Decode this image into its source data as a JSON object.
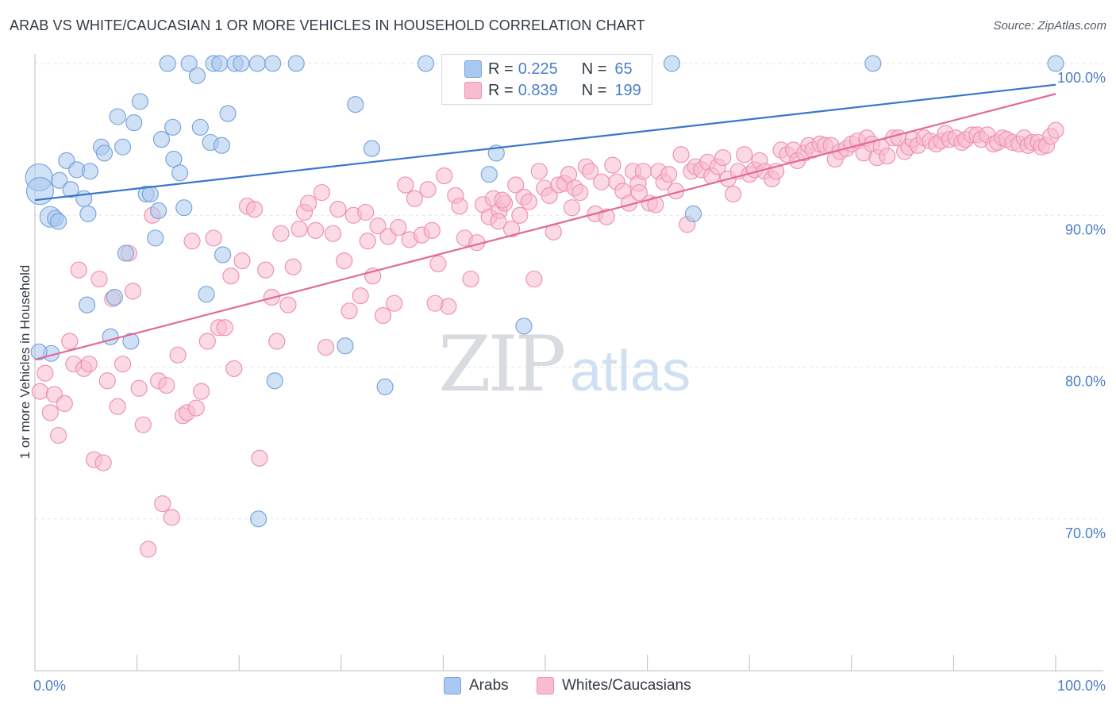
{
  "title": "ARAB VS WHITE/CAUCASIAN 1 OR MORE VEHICLES IN HOUSEHOLD CORRELATION CHART",
  "source": "Source: ZipAtlas.com",
  "watermark": {
    "zip": "ZIP",
    "atlas": "atlas"
  },
  "legend": {
    "rows": [
      {
        "r_label": "R =",
        "r_value": "0.225",
        "n_label": "N =",
        "n_value": "65",
        "color": "#a9c8ef",
        "stroke": "#7aa5dd"
      },
      {
        "r_label": "R =",
        "r_value": "0.839",
        "n_label": "N =",
        "n_value": "199",
        "color": "#f7bcd0",
        "stroke": "#ee93b1"
      }
    ]
  },
  "bottom_legend": {
    "arabs": "Arabs",
    "whites": "Whites/Caucasians"
  },
  "chart_data": {
    "type": "scatter",
    "title": "ARAB VS WHITE/CAUCASIAN 1 OR MORE VEHICLES IN HOUSEHOLD CORRELATION CHART",
    "xlabel": "",
    "ylabel": "1 or more Vehicles in Household",
    "xlim": [
      0,
      100
    ],
    "ylim": [
      60,
      100
    ],
    "x_tick_labels": [
      "0.0%",
      "100.0%"
    ],
    "y_ticks": [
      70,
      80,
      90,
      100
    ],
    "y_tick_labels": [
      "70.0%",
      "80.0%",
      "90.0%",
      "100.0%"
    ],
    "grid": "horizontal dashed",
    "legend_position": "top-center",
    "series": [
      {
        "name": "Arabs",
        "color": "#a9c8ef",
        "stroke": "#7aa5dd",
        "trend": {
          "x": [
            0,
            100
          ],
          "y": [
            91.0,
            98.6
          ],
          "color": "#3a76cc"
        },
        "points": [
          [
            0.4,
            92.5
          ],
          [
            0.5,
            91.6
          ],
          [
            1.5,
            89.9
          ],
          [
            2.0,
            89.8
          ],
          [
            2.3,
            89.6
          ],
          [
            1.6,
            80.9
          ],
          [
            2.4,
            92.3
          ],
          [
            3.1,
            93.6
          ],
          [
            3.5,
            91.7
          ],
          [
            4.1,
            93.0
          ],
          [
            4.8,
            91.1
          ],
          [
            5.4,
            92.9
          ],
          [
            5.2,
            90.1
          ],
          [
            5.1,
            84.1
          ],
          [
            6.5,
            94.5
          ],
          [
            6.8,
            94.1
          ],
          [
            7.4,
            82.0
          ],
          [
            7.8,
            84.6
          ],
          [
            8.1,
            96.5
          ],
          [
            8.6,
            94.5
          ],
          [
            8.9,
            87.5
          ],
          [
            9.4,
            81.7
          ],
          [
            9.7,
            96.1
          ],
          [
            10.3,
            97.5
          ],
          [
            10.9,
            91.4
          ],
          [
            11.3,
            91.4
          ],
          [
            11.8,
            88.5
          ],
          [
            12.4,
            95.0
          ],
          [
            12.1,
            90.3
          ],
          [
            13.0,
            100.0
          ],
          [
            13.5,
            95.8
          ],
          [
            13.6,
            93.7
          ],
          [
            14.2,
            92.8
          ],
          [
            14.6,
            90.5
          ],
          [
            15.1,
            100.0
          ],
          [
            15.9,
            99.2
          ],
          [
            16.2,
            95.8
          ],
          [
            16.8,
            84.8
          ],
          [
            17.2,
            94.8
          ],
          [
            17.5,
            100.0
          ],
          [
            18.1,
            100.0
          ],
          [
            18.3,
            94.6
          ],
          [
            18.4,
            87.4
          ],
          [
            18.9,
            96.7
          ],
          [
            19.6,
            100.0
          ],
          [
            20.2,
            100.0
          ],
          [
            21.8,
            100.0
          ],
          [
            21.9,
            70.0
          ],
          [
            23.3,
            100.0
          ],
          [
            23.5,
            79.1
          ],
          [
            25.6,
            100.0
          ],
          [
            30.4,
            81.4
          ],
          [
            31.4,
            97.3
          ],
          [
            33.0,
            94.4
          ],
          [
            34.3,
            78.7
          ],
          [
            38.3,
            100.0
          ],
          [
            44.5,
            92.7
          ],
          [
            45.2,
            94.1
          ],
          [
            47.3,
            100.0
          ],
          [
            47.9,
            82.7
          ],
          [
            62.4,
            100.0
          ],
          [
            64.5,
            90.1
          ],
          [
            82.1,
            100.0
          ],
          [
            100.0,
            100.0
          ],
          [
            0.4,
            81.0
          ]
        ]
      },
      {
        "name": "Whites/Caucasians",
        "color": "#f7bcd0",
        "stroke": "#ee93b1",
        "trend": {
          "x": [
            0,
            100
          ],
          "y": [
            80.5,
            98.0
          ],
          "color": "#e2699a"
        },
        "points": [
          [
            0.5,
            78.4
          ],
          [
            1.0,
            79.6
          ],
          [
            1.5,
            77.0
          ],
          [
            1.9,
            78.2
          ],
          [
            2.3,
            75.5
          ],
          [
            2.9,
            77.6
          ],
          [
            3.4,
            81.7
          ],
          [
            3.8,
            80.2
          ],
          [
            4.3,
            86.4
          ],
          [
            4.8,
            79.9
          ],
          [
            5.3,
            80.2
          ],
          [
            5.8,
            73.9
          ],
          [
            6.3,
            85.8
          ],
          [
            6.7,
            73.7
          ],
          [
            7.1,
            79.1
          ],
          [
            7.6,
            84.5
          ],
          [
            8.1,
            77.4
          ],
          [
            8.6,
            80.2
          ],
          [
            9.2,
            87.5
          ],
          [
            9.6,
            85.0
          ],
          [
            10.2,
            78.6
          ],
          [
            10.6,
            76.2
          ],
          [
            11.1,
            68.0
          ],
          [
            11.5,
            90.0
          ],
          [
            12.1,
            79.1
          ],
          [
            12.5,
            71.0
          ],
          [
            12.9,
            78.8
          ],
          [
            13.4,
            70.1
          ],
          [
            14.0,
            80.8
          ],
          [
            14.5,
            76.8
          ],
          [
            14.9,
            77.0
          ],
          [
            15.4,
            88.3
          ],
          [
            15.8,
            77.3
          ],
          [
            16.3,
            78.4
          ],
          [
            16.9,
            81.7
          ],
          [
            17.5,
            88.5
          ],
          [
            18.0,
            82.6
          ],
          [
            18.6,
            82.6
          ],
          [
            19.2,
            86.0
          ],
          [
            19.5,
            79.9
          ],
          [
            20.3,
            87.0
          ],
          [
            20.8,
            90.6
          ],
          [
            21.5,
            90.4
          ],
          [
            22.0,
            74.0
          ],
          [
            22.6,
            86.4
          ],
          [
            23.2,
            84.6
          ],
          [
            23.7,
            81.7
          ],
          [
            24.1,
            88.8
          ],
          [
            24.8,
            84.1
          ],
          [
            25.3,
            86.6
          ],
          [
            25.9,
            89.1
          ],
          [
            26.4,
            90.2
          ],
          [
            26.8,
            90.8
          ],
          [
            27.5,
            89.0
          ],
          [
            28.1,
            91.5
          ],
          [
            28.5,
            81.3
          ],
          [
            29.2,
            88.8
          ],
          [
            29.7,
            90.4
          ],
          [
            30.3,
            87.0
          ],
          [
            30.8,
            83.7
          ],
          [
            31.2,
            90.0
          ],
          [
            31.9,
            84.7
          ],
          [
            32.4,
            90.2
          ],
          [
            32.6,
            88.3
          ],
          [
            33.1,
            86.0
          ],
          [
            33.6,
            89.3
          ],
          [
            34.1,
            83.4
          ],
          [
            34.6,
            88.6
          ],
          [
            35.2,
            84.2
          ],
          [
            35.6,
            89.2
          ],
          [
            36.3,
            92.0
          ],
          [
            36.7,
            88.4
          ],
          [
            37.2,
            91.1
          ],
          [
            37.9,
            88.7
          ],
          [
            38.5,
            91.7
          ],
          [
            38.9,
            89.0
          ],
          [
            39.5,
            86.8
          ],
          [
            40.1,
            92.6
          ],
          [
            40.5,
            84.0
          ],
          [
            41.2,
            91.3
          ],
          [
            41.6,
            90.6
          ],
          [
            42.1,
            88.5
          ],
          [
            42.7,
            85.8
          ],
          [
            43.3,
            88.2
          ],
          [
            43.9,
            90.7
          ],
          [
            44.5,
            89.9
          ],
          [
            44.9,
            91.1
          ],
          [
            45.5,
            90.3
          ],
          [
            46.0,
            90.8
          ],
          [
            46.7,
            89.1
          ],
          [
            47.1,
            92.0
          ],
          [
            47.5,
            90.0
          ],
          [
            47.9,
            91.2
          ],
          [
            48.4,
            90.9
          ],
          [
            48.9,
            85.8
          ],
          [
            49.4,
            92.9
          ],
          [
            49.9,
            91.8
          ],
          [
            50.4,
            91.3
          ],
          [
            50.8,
            88.9
          ],
          [
            51.3,
            92.0
          ],
          [
            51.9,
            92.1
          ],
          [
            52.3,
            92.7
          ],
          [
            52.9,
            91.8
          ],
          [
            53.4,
            91.5
          ],
          [
            54.0,
            93.2
          ],
          [
            54.4,
            92.9
          ],
          [
            54.9,
            90.1
          ],
          [
            55.5,
            92.2
          ],
          [
            56.0,
            89.9
          ],
          [
            56.6,
            93.3
          ],
          [
            57.0,
            92.2
          ],
          [
            57.6,
            91.6
          ],
          [
            58.2,
            90.8
          ],
          [
            58.6,
            92.9
          ],
          [
            59.1,
            92.1
          ],
          [
            59.6,
            92.9
          ],
          [
            60.2,
            90.8
          ],
          [
            60.8,
            90.7
          ],
          [
            61.1,
            92.9
          ],
          [
            61.6,
            92.2
          ],
          [
            62.1,
            92.7
          ],
          [
            62.8,
            91.6
          ],
          [
            63.3,
            94.0
          ],
          [
            63.9,
            89.4
          ],
          [
            64.3,
            92.9
          ],
          [
            64.7,
            93.2
          ],
          [
            65.3,
            93.0
          ],
          [
            65.9,
            93.5
          ],
          [
            66.3,
            92.6
          ],
          [
            66.9,
            93.2
          ],
          [
            67.4,
            93.8
          ],
          [
            67.9,
            92.4
          ],
          [
            68.4,
            91.4
          ],
          [
            68.9,
            92.9
          ],
          [
            69.5,
            94.0
          ],
          [
            70.0,
            92.7
          ],
          [
            70.5,
            93.0
          ],
          [
            71.0,
            93.6
          ],
          [
            71.5,
            92.9
          ],
          [
            72.2,
            92.4
          ],
          [
            72.6,
            92.9
          ],
          [
            73.1,
            94.3
          ],
          [
            73.7,
            94.0
          ],
          [
            74.3,
            94.3
          ],
          [
            74.7,
            93.6
          ],
          [
            75.4,
            94.1
          ],
          [
            75.8,
            94.6
          ],
          [
            76.2,
            94.3
          ],
          [
            76.9,
            94.7
          ],
          [
            77.4,
            94.6
          ],
          [
            78.0,
            94.6
          ],
          [
            78.4,
            93.7
          ],
          [
            78.9,
            94.2
          ],
          [
            79.5,
            94.4
          ],
          [
            80.0,
            94.7
          ],
          [
            80.6,
            94.9
          ],
          [
            81.2,
            94.1
          ],
          [
            81.5,
            95.1
          ],
          [
            82.0,
            94.7
          ],
          [
            82.5,
            93.8
          ],
          [
            82.9,
            94.5
          ],
          [
            83.5,
            93.9
          ],
          [
            84.1,
            95.1
          ],
          [
            84.6,
            95.1
          ],
          [
            85.2,
            94.2
          ],
          [
            85.6,
            94.5
          ],
          [
            86.0,
            95.0
          ],
          [
            86.5,
            94.6
          ],
          [
            87.1,
            95.1
          ],
          [
            87.7,
            94.9
          ],
          [
            88.3,
            94.7
          ],
          [
            88.8,
            94.9
          ],
          [
            89.2,
            95.4
          ],
          [
            89.6,
            95.0
          ],
          [
            90.2,
            95.1
          ],
          [
            90.8,
            94.8
          ],
          [
            91.2,
            95.0
          ],
          [
            91.8,
            95.3
          ],
          [
            92.3,
            95.3
          ],
          [
            92.7,
            95.0
          ],
          [
            93.3,
            95.3
          ],
          [
            93.9,
            94.7
          ],
          [
            94.3,
            94.8
          ],
          [
            94.8,
            95.1
          ],
          [
            95.2,
            95.0
          ],
          [
            95.8,
            94.8
          ],
          [
            96.4,
            94.7
          ],
          [
            96.9,
            95.1
          ],
          [
            97.3,
            94.6
          ],
          [
            97.7,
            94.8
          ],
          [
            98.3,
            94.8
          ],
          [
            98.6,
            94.5
          ],
          [
            99.1,
            94.6
          ],
          [
            99.5,
            95.2
          ],
          [
            100.0,
            95.6
          ],
          [
            45.8,
            91.0
          ],
          [
            59.2,
            91.5
          ],
          [
            39.2,
            84.2
          ],
          [
            52.6,
            90.5
          ],
          [
            45.4,
            89.6
          ]
        ]
      }
    ]
  }
}
